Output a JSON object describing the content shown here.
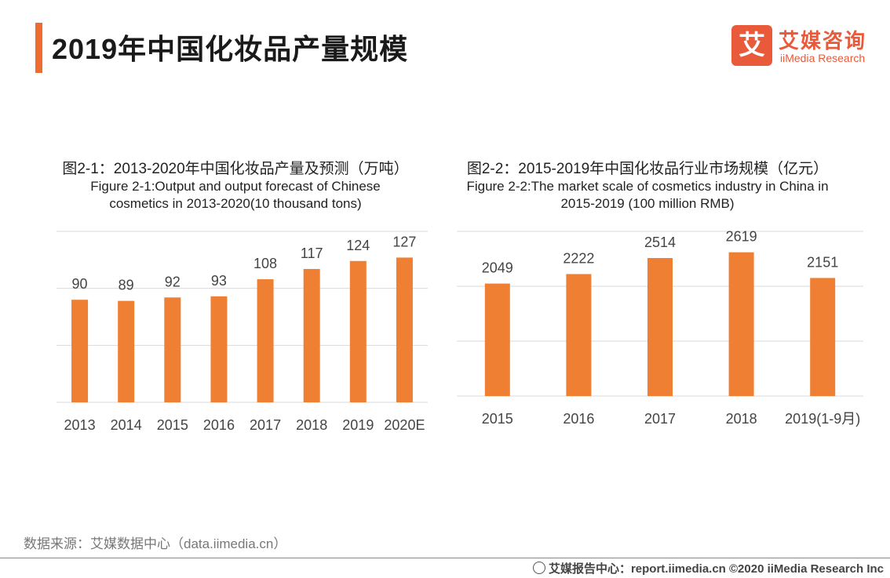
{
  "header": {
    "title": "2019年中国化妆品产量规模",
    "logo_mark": "艾",
    "logo_cn": "艾媒咨询",
    "logo_en": "iiMedia Research"
  },
  "chart1_title": {
    "cn": "图2-1：2013-2020年中国化妆品产量及预测（万吨）",
    "en_line1": "Figure 2-1:Output and output forecast of Chinese",
    "en_line2": "cosmetics in 2013-2020(10 thousand tons)"
  },
  "chart2_title": {
    "cn": "图2-2：2015-2019年中国化妆品行业市场规模（亿元）",
    "en_line1": "Figure 2-2:The market scale of cosmetics industry in China in",
    "en_line2": "2015-2019 (100 million RMB)"
  },
  "chart_data": [
    {
      "type": "bar",
      "categories": [
        "2013",
        "2014",
        "2015",
        "2016",
        "2017",
        "2018",
        "2019",
        "2020E"
      ],
      "values": [
        90,
        89,
        92,
        93,
        108,
        117,
        124,
        127
      ],
      "ylim": [
        0,
        150
      ],
      "grid": true,
      "color": "#ef7f33"
    },
    {
      "type": "bar",
      "categories": [
        "2015",
        "2016",
        "2017",
        "2018",
        "2019(1-9月)"
      ],
      "values": [
        2049,
        2222,
        2514,
        2619,
        2151
      ],
      "ylim": [
        0,
        3000
      ],
      "grid": true,
      "color": "#ef7f33"
    }
  ],
  "source": "数据来源：艾媒数据中心（data.iimedia.cn）",
  "footer": "艾媒报告中心：report.iimedia.cn  ©2020  iiMedia Research  Inc"
}
